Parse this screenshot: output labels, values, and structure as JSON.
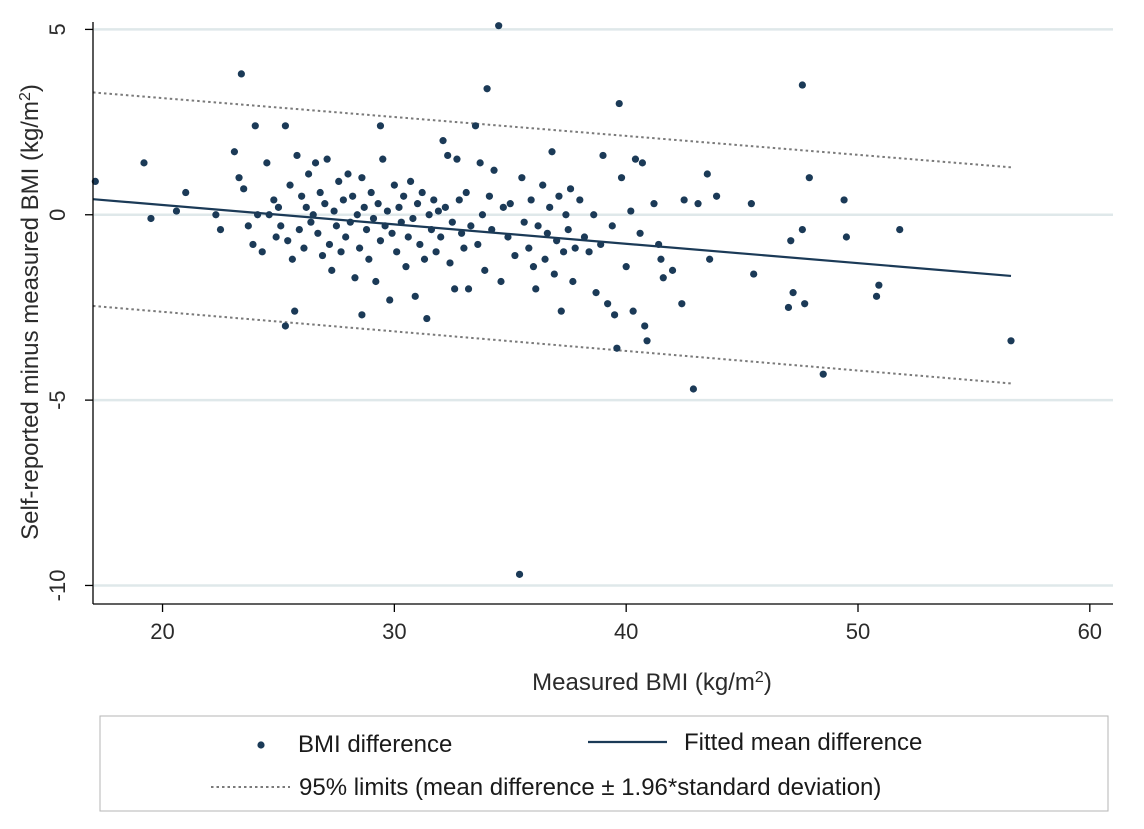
{
  "chart_data": {
    "type": "scatter",
    "xlabel": "Measured BMI",
    "xlabel_unit": "(kg/m",
    "xlabel_sup": "2",
    "xlabel_close": ")",
    "ylabel": "Self-reported minus measured BMI",
    "ylabel_unit": "(kg/m",
    "ylabel_sup": "2",
    "ylabel_close": ")",
    "xlim": [
      17,
      61
    ],
    "ylim": [
      -10.5,
      5.2
    ],
    "x_ticks": [
      20,
      30,
      40,
      50,
      60
    ],
    "y_ticks": [
      5,
      0,
      -5,
      -10
    ],
    "x_tick_labels": [
      "20",
      "30",
      "40",
      "50",
      "60"
    ],
    "y_tick_labels": [
      "5",
      "0",
      "-5",
      "-10"
    ],
    "grid": "horizontal",
    "legend_position": "bottom",
    "colors": {
      "points": "#1b3a57",
      "fit": "#1b3a57",
      "limits": "#7a7a7a",
      "grid": "#dfe8ea"
    },
    "series": [
      {
        "name": "BMI difference",
        "kind": "points",
        "points": [
          [
            17.1,
            0.9
          ],
          [
            19.2,
            1.4
          ],
          [
            19.5,
            -0.1
          ],
          [
            20.6,
            0.1
          ],
          [
            21.0,
            0.6
          ],
          [
            22.3,
            0.0
          ],
          [
            22.5,
            -0.4
          ],
          [
            23.1,
            1.7
          ],
          [
            23.3,
            1.0
          ],
          [
            23.4,
            3.8
          ],
          [
            23.5,
            0.7
          ],
          [
            23.7,
            -0.3
          ],
          [
            23.9,
            -0.8
          ],
          [
            24.0,
            2.4
          ],
          [
            24.1,
            0.0
          ],
          [
            24.3,
            -1.0
          ],
          [
            24.5,
            1.4
          ],
          [
            24.6,
            0.0
          ],
          [
            24.8,
            0.4
          ],
          [
            24.9,
            -0.6
          ],
          [
            25.0,
            0.2
          ],
          [
            25.1,
            -0.3
          ],
          [
            25.3,
            2.4
          ],
          [
            25.3,
            -3.0
          ],
          [
            25.4,
            -0.7
          ],
          [
            25.5,
            0.8
          ],
          [
            25.6,
            -1.2
          ],
          [
            25.7,
            -2.6
          ],
          [
            25.8,
            1.6
          ],
          [
            25.9,
            -0.4
          ],
          [
            26.0,
            0.5
          ],
          [
            26.1,
            -0.9
          ],
          [
            26.2,
            0.2
          ],
          [
            26.3,
            1.1
          ],
          [
            26.4,
            -0.2
          ],
          [
            26.5,
            0.0
          ],
          [
            26.6,
            1.4
          ],
          [
            26.7,
            -0.5
          ],
          [
            26.8,
            0.6
          ],
          [
            26.9,
            -1.1
          ],
          [
            27.0,
            0.3
          ],
          [
            27.1,
            1.5
          ],
          [
            27.2,
            -0.8
          ],
          [
            27.3,
            -1.5
          ],
          [
            27.4,
            0.1
          ],
          [
            27.5,
            -0.3
          ],
          [
            27.6,
            0.9
          ],
          [
            27.7,
            -1.0
          ],
          [
            27.8,
            0.4
          ],
          [
            27.9,
            -0.6
          ],
          [
            28.0,
            1.1
          ],
          [
            28.1,
            -0.2
          ],
          [
            28.2,
            0.5
          ],
          [
            28.3,
            -1.7
          ],
          [
            28.4,
            0.0
          ],
          [
            28.5,
            -0.9
          ],
          [
            28.6,
            1.0
          ],
          [
            28.6,
            -2.7
          ],
          [
            28.7,
            0.2
          ],
          [
            28.8,
            -0.4
          ],
          [
            28.9,
            -1.2
          ],
          [
            29.0,
            0.6
          ],
          [
            29.1,
            -0.1
          ],
          [
            29.2,
            -1.8
          ],
          [
            29.3,
            0.3
          ],
          [
            29.4,
            2.4
          ],
          [
            29.4,
            -0.7
          ],
          [
            29.5,
            1.5
          ],
          [
            29.6,
            -0.3
          ],
          [
            29.7,
            0.1
          ],
          [
            29.8,
            -2.3
          ],
          [
            29.9,
            -0.5
          ],
          [
            30.0,
            0.8
          ],
          [
            30.1,
            -1.0
          ],
          [
            30.2,
            0.2
          ],
          [
            30.3,
            -0.2
          ],
          [
            30.4,
            0.5
          ],
          [
            30.5,
            -1.4
          ],
          [
            30.6,
            -0.6
          ],
          [
            30.7,
            0.9
          ],
          [
            30.8,
            -0.1
          ],
          [
            30.9,
            -2.2
          ],
          [
            31.0,
            0.3
          ],
          [
            31.1,
            -0.8
          ],
          [
            31.2,
            0.6
          ],
          [
            31.3,
            -1.2
          ],
          [
            31.4,
            -2.8
          ],
          [
            31.5,
            0.0
          ],
          [
            31.6,
            -0.4
          ],
          [
            31.7,
            0.4
          ],
          [
            31.8,
            -1.0
          ],
          [
            31.9,
            0.1
          ],
          [
            32.0,
            -0.6
          ],
          [
            32.1,
            2.0
          ],
          [
            32.2,
            0.2
          ],
          [
            32.3,
            1.6
          ],
          [
            32.4,
            -1.3
          ],
          [
            32.5,
            -0.2
          ],
          [
            32.6,
            -2.0
          ],
          [
            32.7,
            1.5
          ],
          [
            32.8,
            0.4
          ],
          [
            32.9,
            -0.5
          ],
          [
            33.0,
            -0.9
          ],
          [
            33.1,
            0.6
          ],
          [
            33.2,
            -2.0
          ],
          [
            33.3,
            -0.3
          ],
          [
            33.5,
            2.4
          ],
          [
            33.6,
            -0.8
          ],
          [
            33.7,
            1.4
          ],
          [
            33.8,
            0.0
          ],
          [
            33.9,
            -1.5
          ],
          [
            34.0,
            3.4
          ],
          [
            34.1,
            0.5
          ],
          [
            34.2,
            -0.4
          ],
          [
            34.3,
            1.2
          ],
          [
            34.5,
            5.1
          ],
          [
            34.6,
            -1.8
          ],
          [
            34.7,
            0.2
          ],
          [
            34.9,
            -0.6
          ],
          [
            35.0,
            0.3
          ],
          [
            35.2,
            -1.1
          ],
          [
            35.4,
            -9.7
          ],
          [
            35.5,
            1.0
          ],
          [
            35.6,
            -0.2
          ],
          [
            35.8,
            -0.9
          ],
          [
            35.9,
            0.4
          ],
          [
            36.0,
            -1.4
          ],
          [
            36.1,
            -2.0
          ],
          [
            36.2,
            -0.3
          ],
          [
            36.4,
            0.8
          ],
          [
            36.5,
            -1.2
          ],
          [
            36.6,
            -0.5
          ],
          [
            36.7,
            0.2
          ],
          [
            36.8,
            1.7
          ],
          [
            36.9,
            -1.6
          ],
          [
            37.0,
            -0.7
          ],
          [
            37.1,
            0.5
          ],
          [
            37.2,
            -2.6
          ],
          [
            37.3,
            -1.0
          ],
          [
            37.4,
            0.0
          ],
          [
            37.5,
            -0.4
          ],
          [
            37.6,
            0.7
          ],
          [
            37.7,
            -1.8
          ],
          [
            37.8,
            -0.9
          ],
          [
            38.0,
            0.4
          ],
          [
            38.2,
            -0.6
          ],
          [
            38.4,
            -1.0
          ],
          [
            38.6,
            0.0
          ],
          [
            38.7,
            -2.1
          ],
          [
            38.9,
            -0.8
          ],
          [
            39.0,
            1.6
          ],
          [
            39.2,
            -2.4
          ],
          [
            39.4,
            -0.3
          ],
          [
            39.5,
            -2.7
          ],
          [
            39.6,
            -3.6
          ],
          [
            39.7,
            3.0
          ],
          [
            39.8,
            1.0
          ],
          [
            40.0,
            -1.4
          ],
          [
            40.2,
            0.1
          ],
          [
            40.3,
            -2.6
          ],
          [
            40.4,
            1.5
          ],
          [
            40.6,
            -0.5
          ],
          [
            40.7,
            1.4
          ],
          [
            40.8,
            -3.0
          ],
          [
            40.9,
            -3.4
          ],
          [
            41.2,
            0.3
          ],
          [
            41.4,
            -0.8
          ],
          [
            41.5,
            -1.2
          ],
          [
            41.6,
            -1.7
          ],
          [
            42.0,
            -1.5
          ],
          [
            42.4,
            -2.4
          ],
          [
            42.5,
            0.4
          ],
          [
            42.9,
            -4.7
          ],
          [
            43.1,
            0.3
          ],
          [
            43.5,
            1.1
          ],
          [
            43.6,
            -1.2
          ],
          [
            43.9,
            0.5
          ],
          [
            45.4,
            0.3
          ],
          [
            45.5,
            -1.6
          ],
          [
            47.0,
            -2.5
          ],
          [
            47.1,
            -0.7
          ],
          [
            47.2,
            -2.1
          ],
          [
            47.6,
            3.5
          ],
          [
            47.6,
            -0.4
          ],
          [
            47.7,
            -2.4
          ],
          [
            47.9,
            1.0
          ],
          [
            48.5,
            -4.3
          ],
          [
            49.4,
            0.4
          ],
          [
            49.5,
            -0.6
          ],
          [
            50.8,
            -2.2
          ],
          [
            50.9,
            -1.9
          ],
          [
            51.8,
            -0.4
          ],
          [
            56.6,
            -3.4
          ]
        ]
      },
      {
        "name": "Fitted mean difference",
        "kind": "line",
        "points": [
          [
            17.0,
            0.42
          ],
          [
            56.6,
            -1.65
          ]
        ]
      },
      {
        "name": "95% limits (mean difference ± 1.96*standard deviation)",
        "kind": "limits",
        "upper": [
          [
            17.0,
            3.3
          ],
          [
            56.6,
            1.28
          ]
        ],
        "lower": [
          [
            17.0,
            -2.46
          ],
          [
            56.6,
            -4.55
          ]
        ]
      }
    ]
  }
}
